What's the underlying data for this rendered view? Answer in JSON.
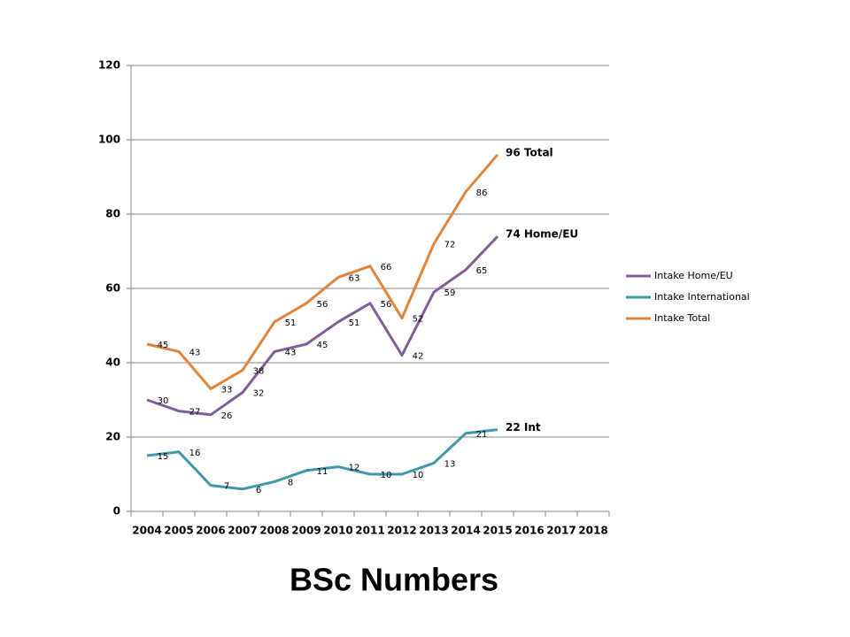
{
  "chart_data": {
    "type": "line",
    "title": "BSc Numbers",
    "categories": [
      "2004",
      "2005",
      "2006",
      "2007",
      "2008",
      "2009",
      "2010",
      "2011",
      "2012",
      "2013",
      "2014",
      "2015",
      "2016",
      "2017",
      "2018"
    ],
    "series": [
      {
        "name": "Intake Home/EU",
        "color": "#7e5f99",
        "values": [
          30,
          27,
          26,
          32,
          43,
          45,
          51,
          56,
          42,
          59,
          65,
          74,
          null,
          null,
          null
        ],
        "end_label": "74 Home/EU"
      },
      {
        "name": "Intake International",
        "color": "#3f98aa",
        "values": [
          15,
          16,
          7,
          6,
          8,
          11,
          12,
          10,
          10,
          13,
          21,
          22,
          null,
          null,
          null
        ],
        "end_label": "22 Int"
      },
      {
        "name": "Intake Total",
        "color": "#e0843b",
        "values": [
          45,
          43,
          33,
          38,
          51,
          56,
          63,
          66,
          52,
          72,
          86,
          96,
          null,
          null,
          null
        ],
        "end_label": "96 Total"
      }
    ],
    "ylim": [
      0,
      120
    ],
    "yticks": [
      0,
      20,
      40,
      60,
      80,
      100,
      120
    ],
    "grid": true,
    "data_labels": true,
    "legend": "right"
  }
}
